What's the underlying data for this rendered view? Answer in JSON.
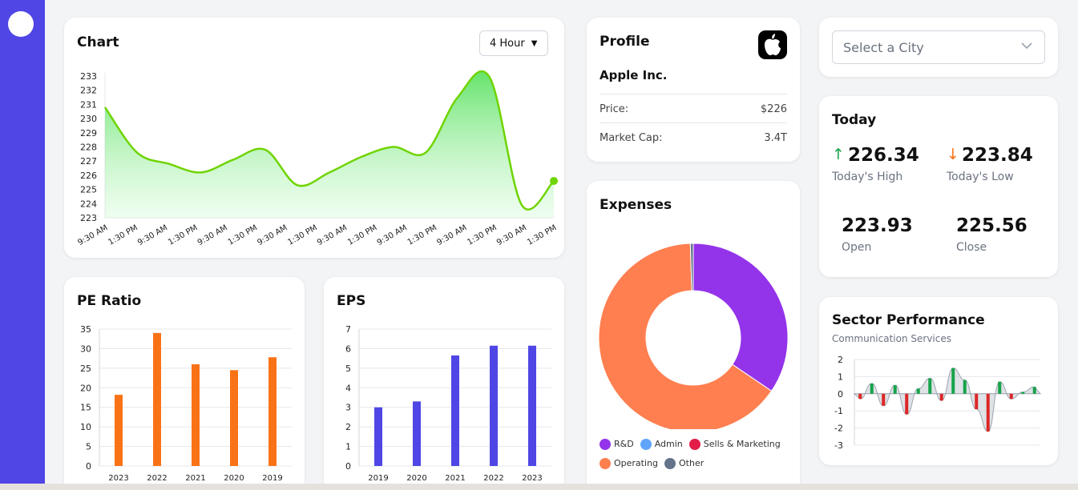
{
  "chart_card": {
    "title": "Chart",
    "interval": "4 Hour",
    "chart_data": {
      "type": "area",
      "y_ticks": [
        "233",
        "232",
        "231",
        "230",
        "229",
        "228",
        "227",
        "226",
        "225",
        "224",
        "223"
      ],
      "x_ticks": [
        "9:30 AM",
        "1:30 PM",
        "9:30 AM",
        "1:30 PM",
        "9:30 AM",
        "1:30 PM",
        "9:30 AM",
        "1:30 PM",
        "9:30 AM",
        "1:30 PM",
        "9:30 AM",
        "1:30 PM",
        "9:30 AM",
        "1:30 PM",
        "9:30 AM",
        "1:30 PM"
      ],
      "values": [
        230.8,
        227.6,
        226.8,
        226.2,
        227.1,
        227.8,
        225.3,
        226.2,
        227.3,
        228.0,
        227.6,
        231.5,
        232.9,
        223.9,
        225.6
      ],
      "ylim": [
        223,
        233
      ],
      "color": "#6fd400"
    }
  },
  "profile": {
    "title": "Profile",
    "company": "Apple Inc.",
    "price_label": "Price:",
    "price": "$226",
    "cap_label": "Market Cap:",
    "cap": "3.4T",
    "logo_icon": "apple-logo-icon"
  },
  "city_select": {
    "placeholder": "Select a City"
  },
  "today": {
    "title": "Today",
    "high": "226.34",
    "high_label": "Today's High",
    "low": "223.84",
    "low_label": "Today's Low",
    "open": "223.93",
    "open_label": "Open",
    "close": "225.56",
    "close_label": "Close",
    "up_color": "#16a34a",
    "down_color": "#f97316"
  },
  "pe_ratio": {
    "title": "PE Ratio",
    "chart_data": {
      "type": "bar",
      "categories": [
        "2023",
        "2022",
        "2021",
        "2020",
        "2019"
      ],
      "values": [
        18.2,
        34,
        26,
        24.5,
        27.8
      ],
      "y_ticks": [
        "35",
        "30",
        "25",
        "20",
        "15",
        "10",
        "5",
        "0"
      ],
      "ylim": [
        0,
        35
      ],
      "color": "#f97316"
    }
  },
  "eps": {
    "title": "EPS",
    "chart_data": {
      "type": "bar",
      "categories": [
        "2019",
        "2020",
        "2021",
        "2022",
        "2023"
      ],
      "values": [
        3.0,
        3.3,
        5.65,
        6.15,
        6.15
      ],
      "y_ticks": [
        "7",
        "6",
        "5",
        "4",
        "3",
        "2",
        "1",
        "0"
      ],
      "ylim": [
        0,
        7
      ],
      "color": "#4f46e5"
    }
  },
  "expenses": {
    "title": "Expenses",
    "chart_data": {
      "type": "pie",
      "slices": [
        {
          "name": "R&D",
          "value": 34.5,
          "color": "#9333ea"
        },
        {
          "name": "Admin",
          "value": 0.0,
          "color": "#60a5fa"
        },
        {
          "name": "Sells & Marketing",
          "value": 0.0,
          "color": "#e11d48"
        },
        {
          "name": "Operating",
          "value": 65.0,
          "color": "#ff7f50"
        },
        {
          "name": "Other",
          "value": 0.5,
          "color": "#64748b"
        }
      ]
    }
  },
  "sector": {
    "title": "Sector Performance",
    "subtitle": "Communication Services",
    "chart_data": {
      "type": "bar",
      "y_ticks": [
        "2",
        "1",
        "0",
        "-1",
        "-2",
        "-3"
      ],
      "ylim": [
        -3,
        2
      ],
      "values": [
        -0.3,
        0.6,
        -0.7,
        0.5,
        -1.2,
        0.3,
        0.9,
        -0.4,
        1.5,
        0.8,
        -0.9,
        -2.2,
        0.7,
        -0.3,
        0.1,
        0.4
      ],
      "pos_color": "#16a34a",
      "neg_color": "#dc2626"
    }
  }
}
